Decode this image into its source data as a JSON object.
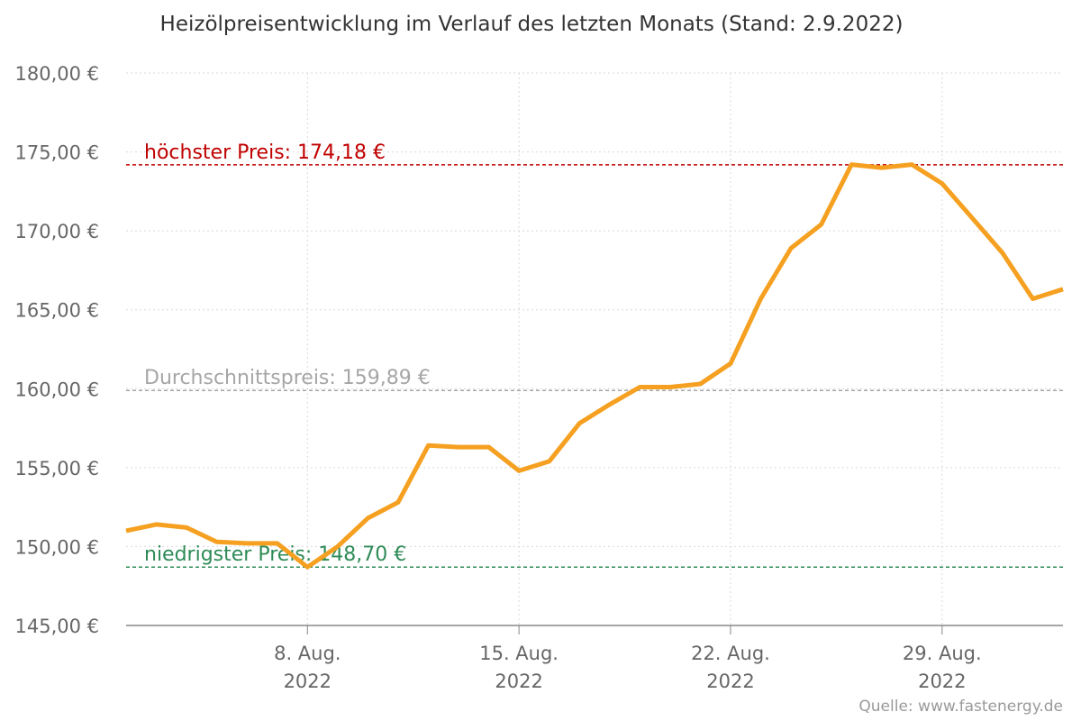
{
  "chart_data": {
    "type": "line",
    "title": "Heizölpreisentwicklung im Verlauf des letzten Monats (Stand: 2.9.2022)",
    "xlabel": "",
    "ylabel": "",
    "ylim": [
      145,
      180
    ],
    "yticks": [
      "145,00 €",
      "150,00 €",
      "155,00 €",
      "160,00 €",
      "165,00 €",
      "170,00 €",
      "175,00 €",
      "180,00 €"
    ],
    "xlim": [
      "2022-08-02",
      "2022-09-02"
    ],
    "xticks": [
      {
        "date": "2022-08-08",
        "line1": "8. Aug.",
        "line2": "2022"
      },
      {
        "date": "2022-08-15",
        "line1": "15. Aug.",
        "line2": "2022"
      },
      {
        "date": "2022-08-22",
        "line1": "22. Aug.",
        "line2": "2022"
      },
      {
        "date": "2022-08-29",
        "line1": "29. Aug.",
        "line2": "2022"
      }
    ],
    "grid": true,
    "series": [
      {
        "color": "#f5a020",
        "x": [
          "2022-08-02",
          "2022-08-03",
          "2022-08-04",
          "2022-08-05",
          "2022-08-06",
          "2022-08-07",
          "2022-08-08",
          "2022-08-09",
          "2022-08-10",
          "2022-08-11",
          "2022-08-12",
          "2022-08-13",
          "2022-08-14",
          "2022-08-15",
          "2022-08-16",
          "2022-08-17",
          "2022-08-18",
          "2022-08-19",
          "2022-08-20",
          "2022-08-21",
          "2022-08-22",
          "2022-08-23",
          "2022-08-24",
          "2022-08-25",
          "2022-08-26",
          "2022-08-27",
          "2022-08-28",
          "2022-08-29",
          "2022-08-30",
          "2022-08-31",
          "2022-09-01",
          "2022-09-02"
        ],
        "values": [
          151.0,
          151.4,
          151.2,
          150.3,
          150.2,
          150.2,
          148.7,
          150.0,
          151.8,
          152.8,
          156.4,
          156.3,
          156.3,
          154.8,
          155.4,
          157.8,
          159.0,
          160.1,
          160.1,
          160.3,
          161.6,
          165.7,
          168.9,
          170.4,
          174.2,
          174.0,
          174.2,
          173.0,
          170.8,
          168.6,
          165.7,
          166.3
        ]
      }
    ],
    "reference_lines": [
      {
        "label": "höchster Preis: 174,18 €",
        "value": 174.18,
        "color": "#c00000"
      },
      {
        "label": "Durchschnittspreis: 159,89 €",
        "value": 159.89,
        "color": "#a6a6a6"
      },
      {
        "label": "niedrigster Preis: 148,70 €",
        "value": 148.7,
        "color": "#2e8b57"
      }
    ]
  },
  "source": "Quelle: www.fastenergy.de"
}
